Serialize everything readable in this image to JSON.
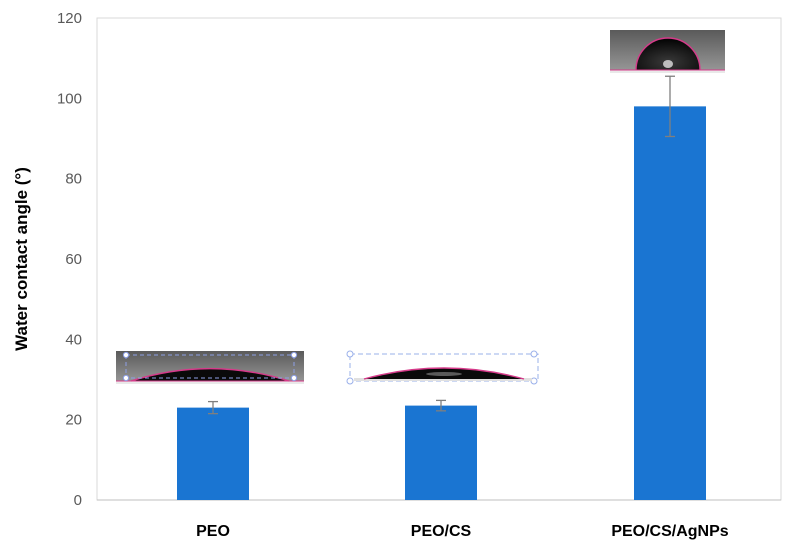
{
  "chart_data": {
    "type": "bar",
    "title": "",
    "xlabel": "",
    "ylabel": "Water contact angle (°)",
    "categories": [
      "PEO",
      "PEO/CS",
      "PEO/CS/AgNPs"
    ],
    "values": [
      23,
      23.5,
      98
    ],
    "errors": [
      1.5,
      1.3,
      7.5
    ],
    "ylim": [
      0,
      120
    ],
    "yticks": [
      0,
      20,
      40,
      60,
      80,
      100,
      120
    ],
    "grid": false,
    "legend": "none",
    "bar_color": "#1a75d2",
    "error_bar_color": "#7f7f7f",
    "inset_images": [
      "droplet-photo-flat",
      "droplet-photo-flat",
      "droplet-photo-round"
    ]
  }
}
